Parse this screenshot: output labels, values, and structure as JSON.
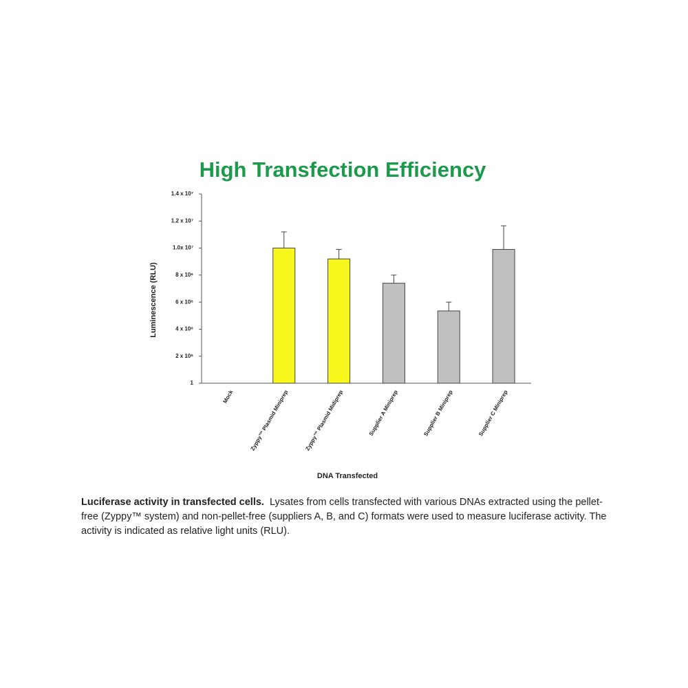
{
  "chart_data": {
    "type": "bar",
    "title": "High Transfection Efficiency",
    "y_label": "Luminescence (RLU)",
    "x_label": "DNA Transfected",
    "categories": [
      "Mock",
      "Zyppy™ Plasmid Miniprep",
      "Zyppy™ Plasmid Midiprep",
      "Supplier A Miniprep",
      "Supplier B Miniprep",
      "Supplier C Miniprep"
    ],
    "values": [
      null,
      10000000,
      9200000,
      7400000,
      5350000,
      9900000
    ],
    "errors": [
      null,
      1200000,
      700000,
      600000,
      650000,
      1750000
    ],
    "colors": [
      "#c0c0c0",
      "#f7f71e",
      "#f7f71e",
      "#c0c0c0",
      "#c0c0c0",
      "#c0c0c0"
    ],
    "ylim": [
      1,
      14000000
    ],
    "yticks": [
      1,
      {
        "value": 2000000,
        "label": "2 x 10⁶"
      },
      {
        "value": 4000000,
        "label": "4 x 10⁶"
      },
      {
        "value": 6000000,
        "label": "6 x 10⁶"
      },
      {
        "value": 8000000,
        "label": "8 x 10⁶"
      },
      {
        "value": 10000000,
        "label": "1.0x 10⁷"
      },
      {
        "value": 12000000,
        "label": "1.2 x 10⁷"
      },
      {
        "value": 14000000,
        "label": "1.4 x 10⁷"
      }
    ],
    "grid": false
  },
  "caption": {
    "bold": "Luciferase activity in transfected cells.",
    "text": "Lysates from cells transfected with various DNAs extracted using the pellet-free (Zyppy™ system) and non-pellet-free (suppliers A, B, and C) formats were used to measure luciferase activity.  The activity is indicated as relative light units (RLU)."
  }
}
